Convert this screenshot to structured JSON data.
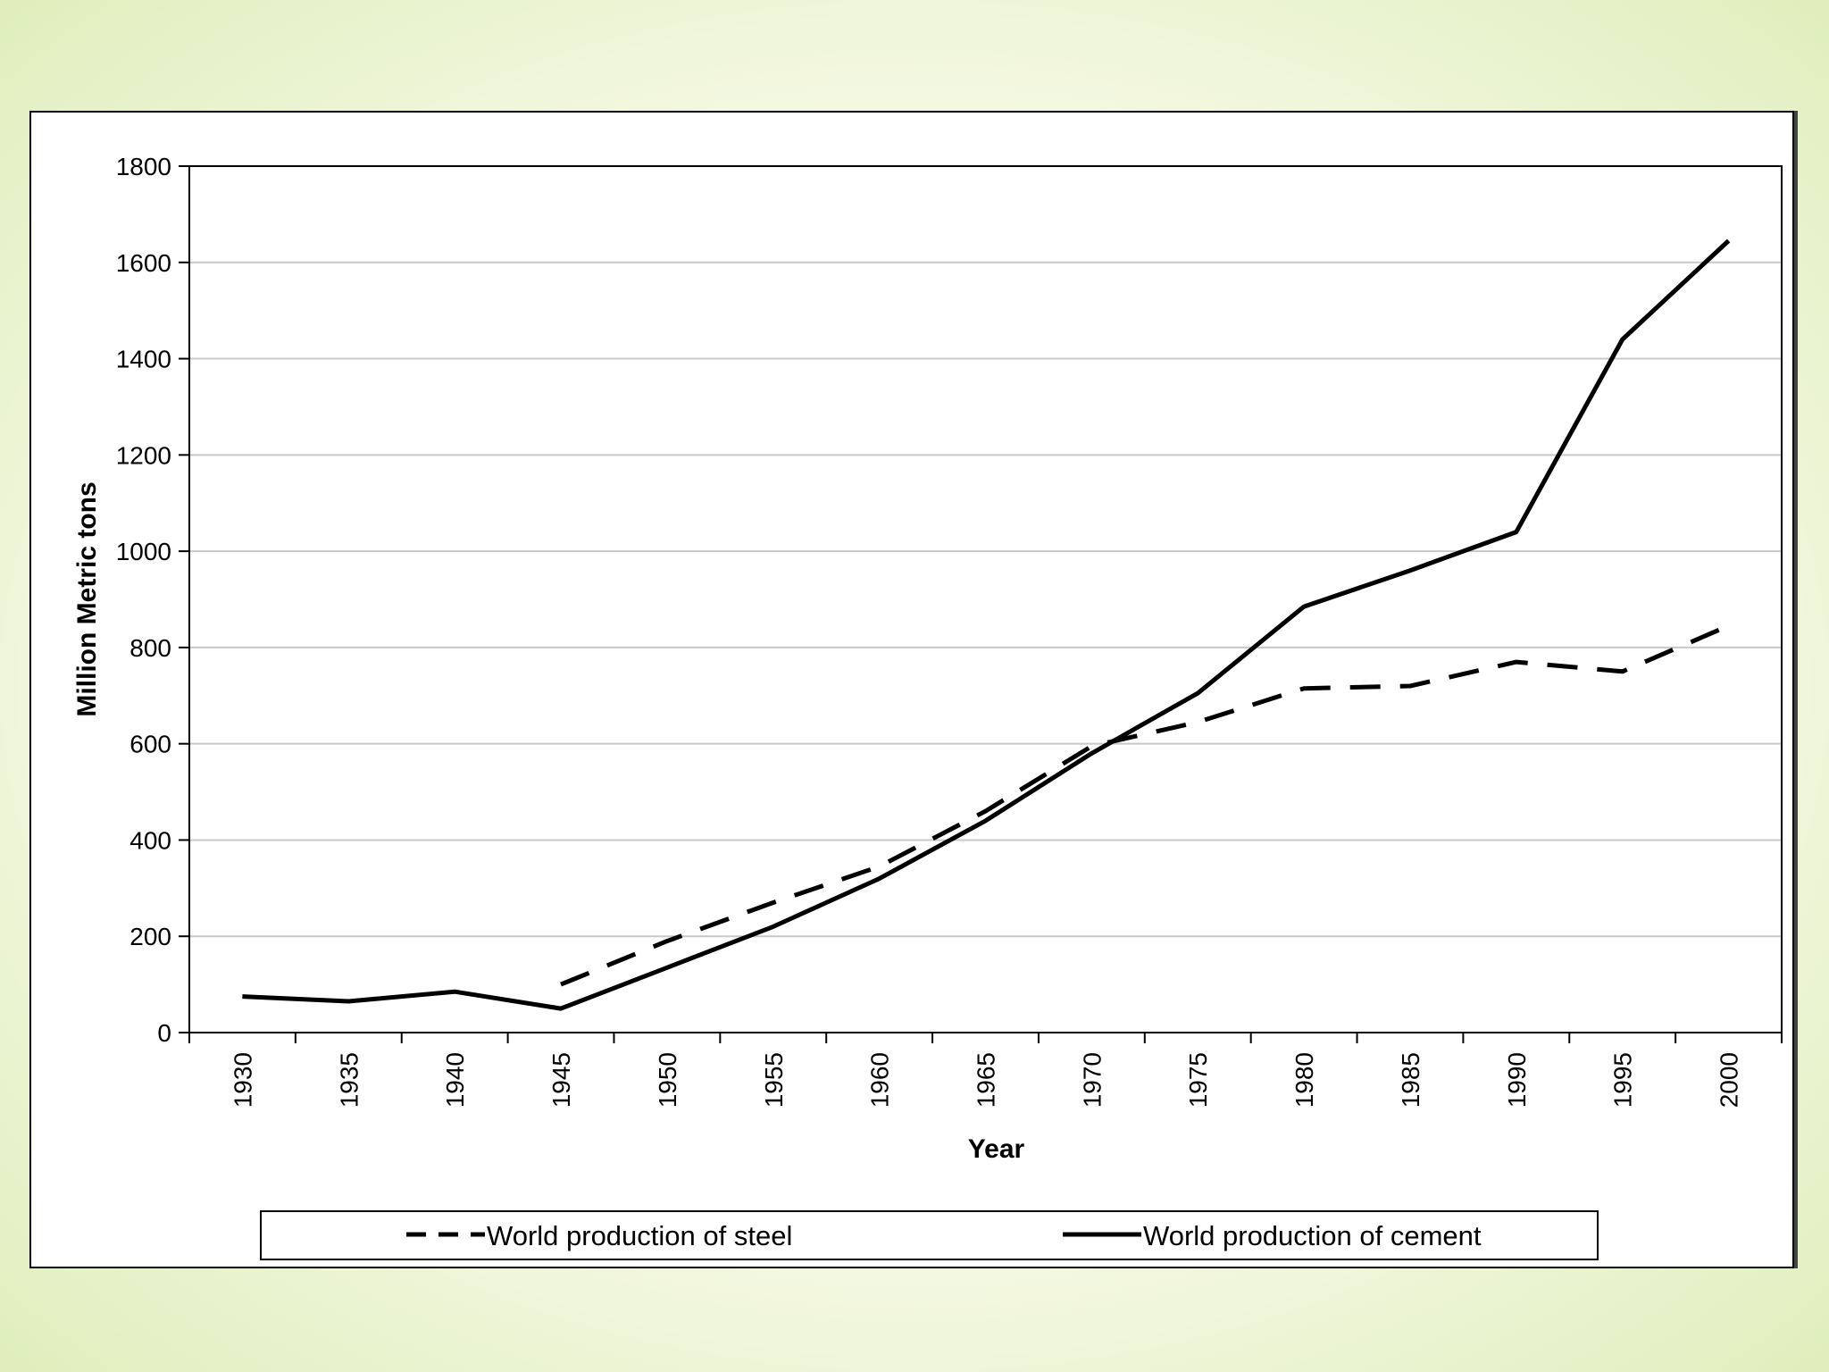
{
  "chart_data": {
    "type": "line",
    "title": "",
    "xlabel": "Year",
    "ylabel": "Million Metric tons",
    "ylim": [
      0,
      1800
    ],
    "yticks": [
      0,
      200,
      400,
      600,
      800,
      1000,
      1200,
      1400,
      1600,
      1800
    ],
    "categories": [
      "1930",
      "1935",
      "1940",
      "1945",
      "1950",
      "1955",
      "1960",
      "1965",
      "1970",
      "1975",
      "1980",
      "1985",
      "1990",
      "1995",
      "2000"
    ],
    "grid": true,
    "legend_position": "bottom",
    "series": [
      {
        "name": "World production of steel",
        "style": "dashed",
        "values": [
          null,
          null,
          null,
          100,
          190,
          270,
          345,
          460,
          595,
          645,
          715,
          720,
          770,
          750,
          845
        ]
      },
      {
        "name": "World production of cement",
        "style": "solid",
        "values": [
          75,
          65,
          85,
          50,
          135,
          220,
          320,
          440,
          580,
          705,
          885,
          960,
          1040,
          1440,
          1645
        ]
      }
    ]
  },
  "colors": {
    "line": "#000000",
    "grid": "#c8c8c8"
  }
}
